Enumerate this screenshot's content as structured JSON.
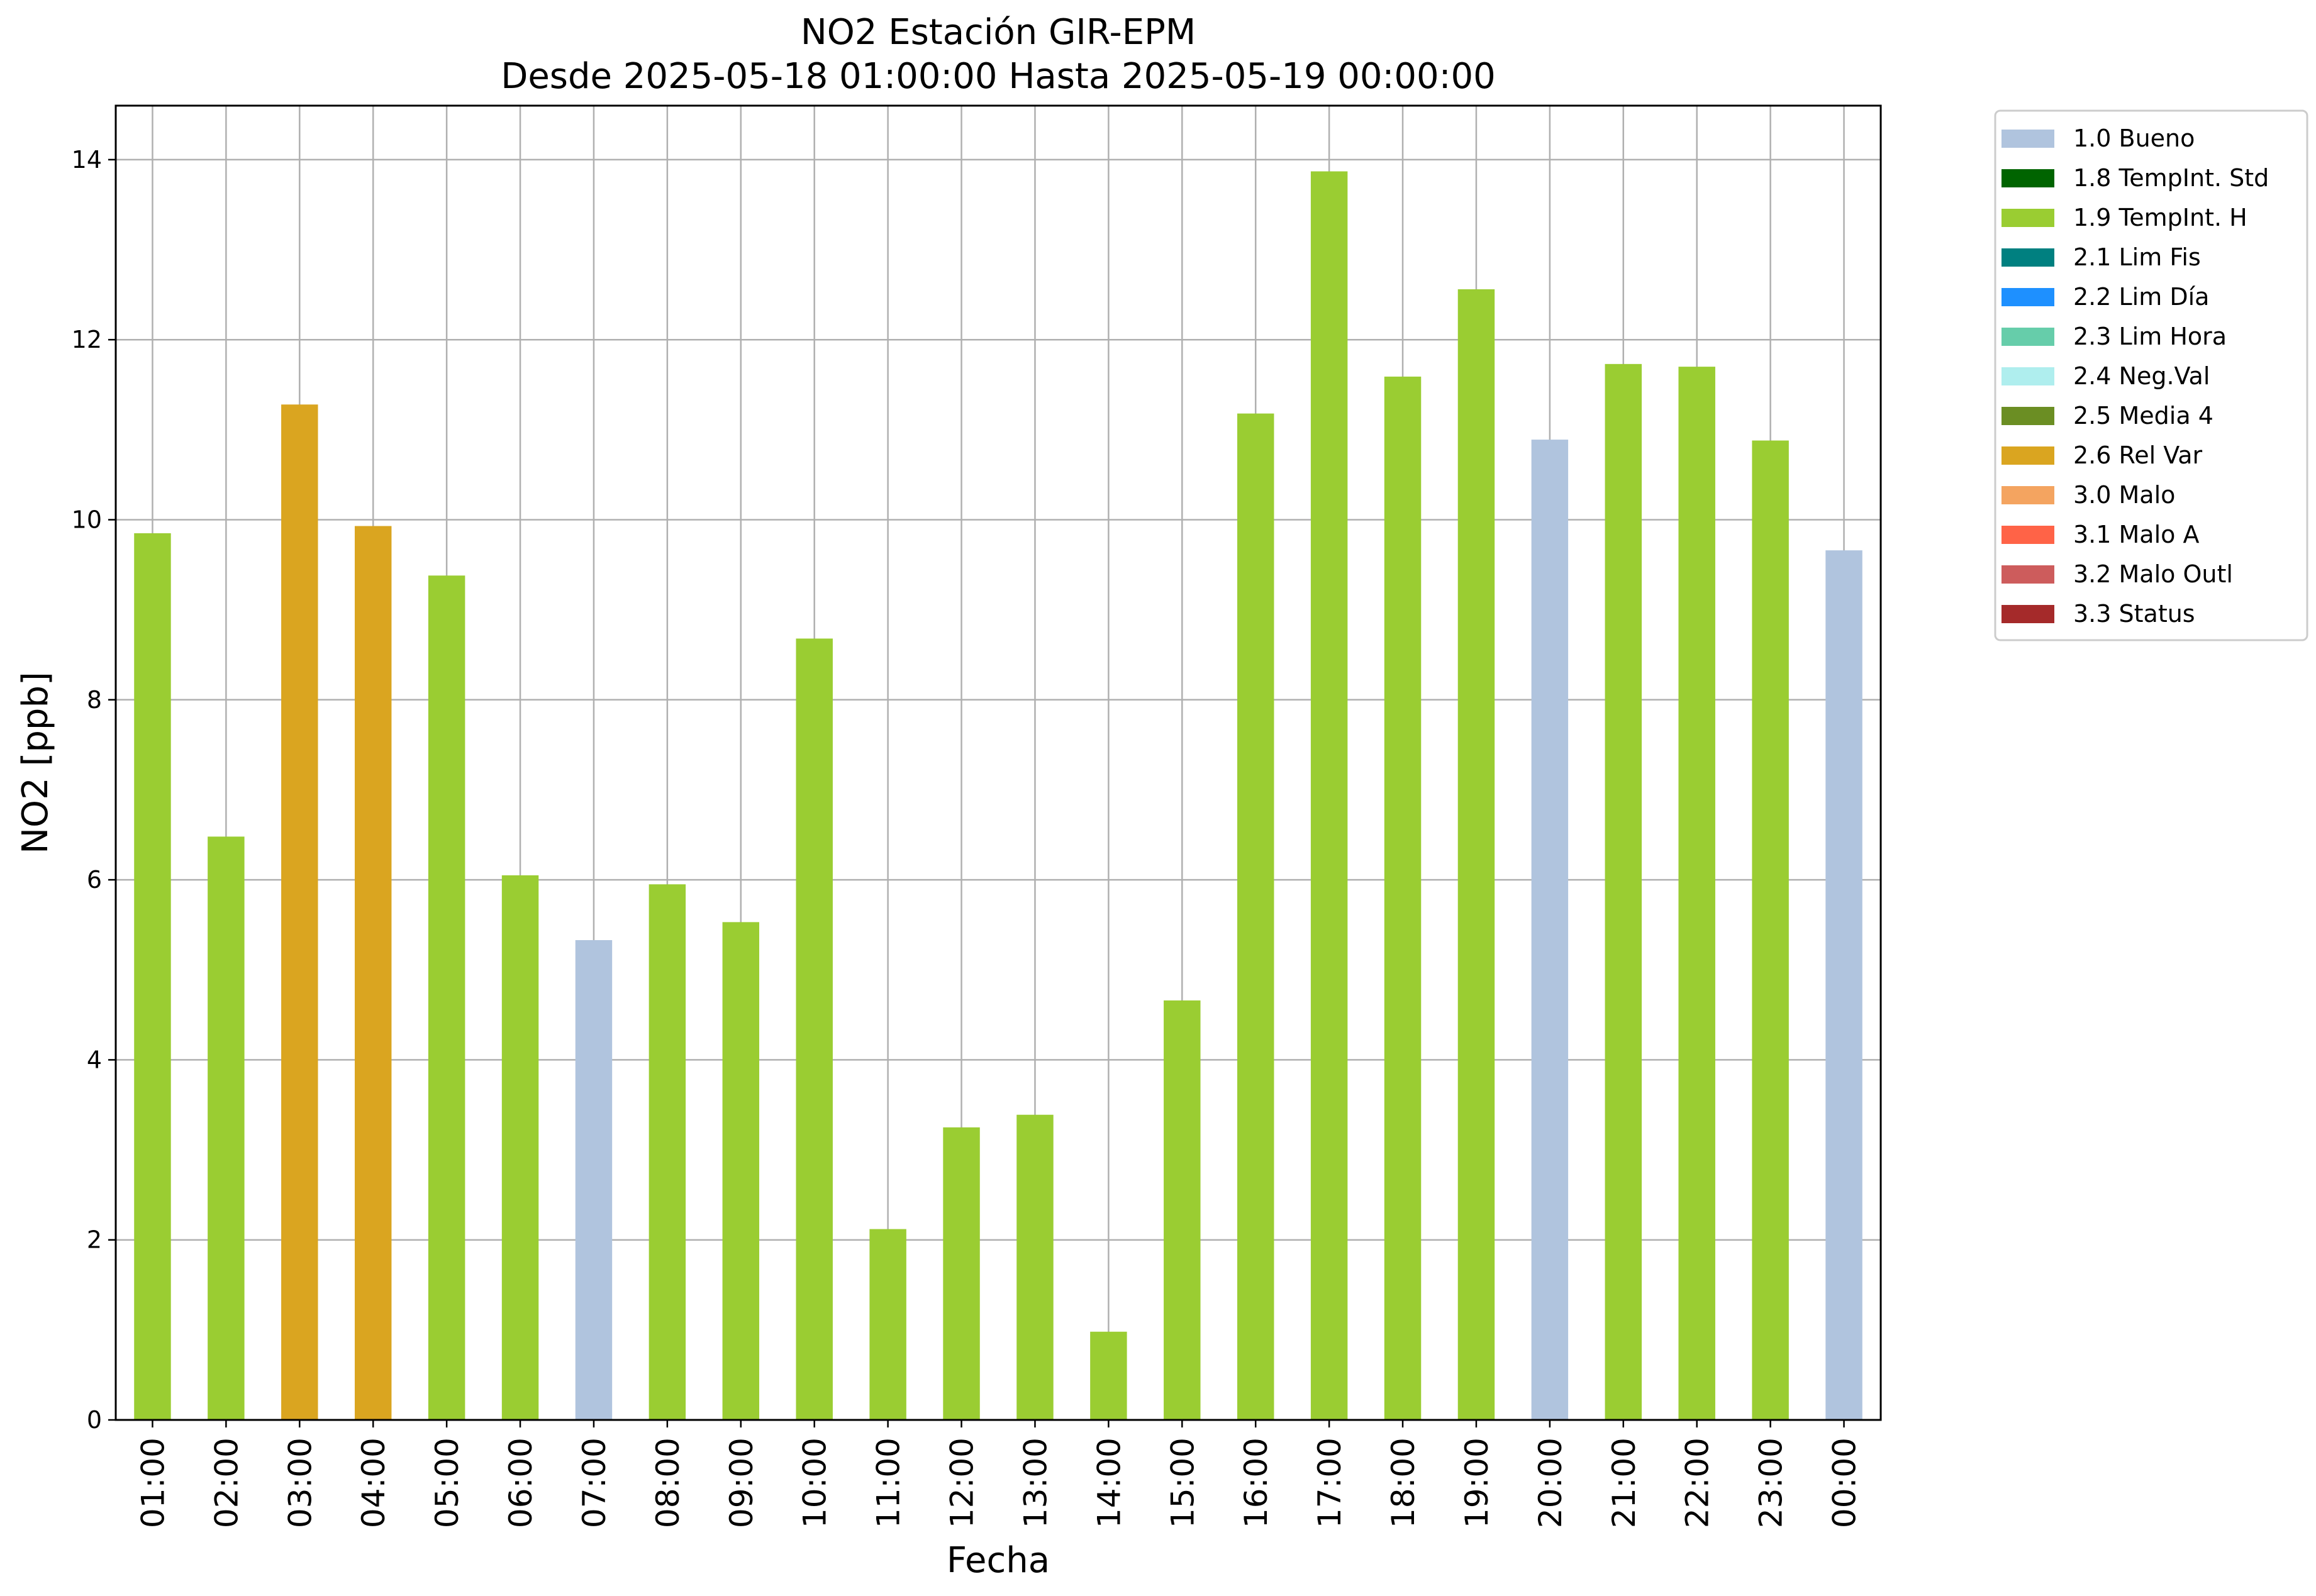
{
  "chart_data": {
    "type": "bar",
    "title": "NO2 Estación GIR-EPM",
    "subtitle": "Desde 2025-05-18 01:00:00 Hasta 2025-05-19 00:00:00",
    "xlabel": "Fecha",
    "ylabel": "NO2 [ppb]",
    "ylim": [
      0,
      14.6
    ],
    "yticks": [
      0,
      2,
      4,
      6,
      8,
      10,
      12,
      14
    ],
    "grid": true,
    "legend_position": "outside-top-right",
    "categories": [
      "01:00",
      "02:00",
      "03:00",
      "04:00",
      "05:00",
      "06:00",
      "07:00",
      "08:00",
      "09:00",
      "10:00",
      "11:00",
      "12:00",
      "13:00",
      "14:00",
      "15:00",
      "16:00",
      "17:00",
      "18:00",
      "19:00",
      "20:00",
      "21:00",
      "22:00",
      "23:00",
      "00:00"
    ],
    "values": [
      9.85,
      6.48,
      11.28,
      9.93,
      9.38,
      6.05,
      5.33,
      5.95,
      5.53,
      8.68,
      2.12,
      3.25,
      3.39,
      0.98,
      4.66,
      11.18,
      13.87,
      11.59,
      12.56,
      10.89,
      11.73,
      11.7,
      10.88,
      9.66
    ],
    "flags": [
      "1.9",
      "1.9",
      "2.6",
      "2.6",
      "1.9",
      "1.9",
      "1.0",
      "1.9",
      "1.9",
      "1.9",
      "1.9",
      "1.9",
      "1.9",
      "1.9",
      "1.9",
      "1.9",
      "1.9",
      "1.9",
      "1.9",
      "1.0",
      "1.9",
      "1.9",
      "1.9",
      "1.0"
    ],
    "legend": [
      {
        "code": "1.0",
        "label": "1.0 Bueno",
        "color": "#b0c4de"
      },
      {
        "code": "1.8",
        "label": "1.8 TempInt. Std",
        "color": "#006400"
      },
      {
        "code": "1.9",
        "label": "1.9 TempInt. H",
        "color": "#9acd32"
      },
      {
        "code": "2.1",
        "label": "2.1 Lim Fis",
        "color": "#008080"
      },
      {
        "code": "2.2",
        "label": "2.2 Lim Día",
        "color": "#1e90ff"
      },
      {
        "code": "2.3",
        "label": "2.3 Lim Hora",
        "color": "#66cdaa"
      },
      {
        "code": "2.4",
        "label": "2.4 Neg.Val",
        "color": "#afeeee"
      },
      {
        "code": "2.5",
        "label": "2.5 Media 4",
        "color": "#6b8e23"
      },
      {
        "code": "2.6",
        "label": "2.6 Rel Var",
        "color": "#daa520"
      },
      {
        "code": "3.0",
        "label": "3.0 Malo",
        "color": "#f4a460"
      },
      {
        "code": "3.1",
        "label": "3.1 Malo A",
        "color": "#ff6347"
      },
      {
        "code": "3.2",
        "label": "3.2 Malo Outl",
        "color": "#cd5c5c"
      },
      {
        "code": "3.3",
        "label": "3.3 Status",
        "color": "#a52a2a"
      }
    ]
  }
}
